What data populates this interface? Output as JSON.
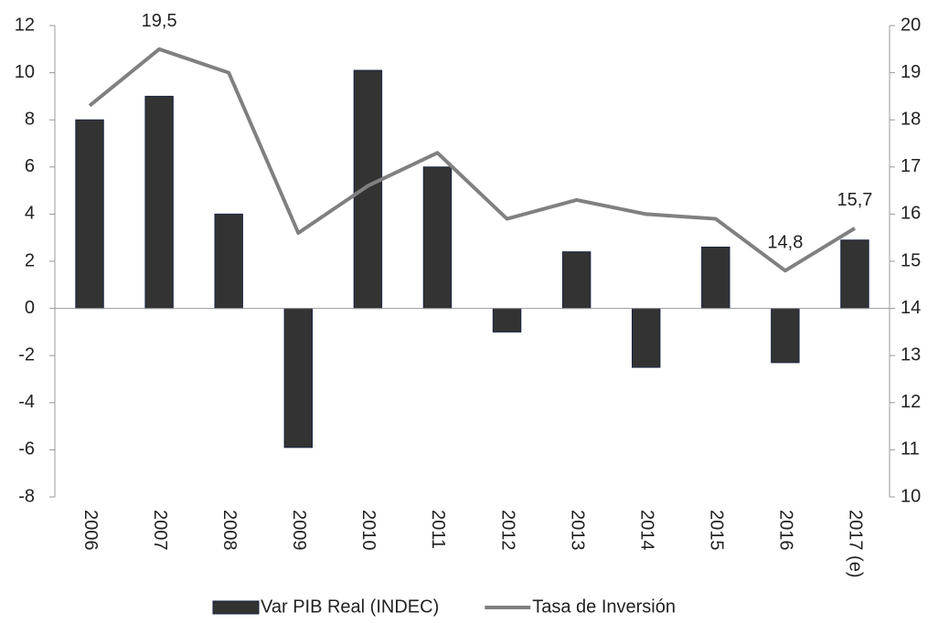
{
  "chart_data": {
    "type": "bar_line",
    "categories": [
      "2006",
      "2007",
      "2008",
      "2009",
      "2010",
      "2011",
      "2012",
      "2013",
      "2014",
      "2015",
      "2016",
      "2017 (e)"
    ],
    "series": [
      {
        "name": "Var PIB Real (INDEC)",
        "type": "bar",
        "color": "#333333",
        "values": [
          8.0,
          9.0,
          4.0,
          -5.9,
          10.1,
          6.0,
          -1.0,
          2.4,
          -2.5,
          2.6,
          -2.3,
          2.9
        ]
      },
      {
        "name": "Tasa de Inversión",
        "type": "line",
        "axis": "y2",
        "color": "#808080",
        "values": [
          18.3,
          19.5,
          19.0,
          15.6,
          16.6,
          17.3,
          15.9,
          16.3,
          16.0,
          15.9,
          14.8,
          15.7
        ],
        "value_labels": [
          null,
          "19,5",
          null,
          null,
          null,
          null,
          null,
          null,
          null,
          null,
          "14,8",
          "15,7"
        ]
      }
    ],
    "ylim": [
      -8,
      12
    ],
    "yticks": [
      -8,
      -6,
      -4,
      -2,
      0,
      2,
      4,
      6,
      8,
      10,
      12
    ],
    "y2lim": [
      10,
      20
    ],
    "y2ticks": [
      10,
      11,
      12,
      13,
      14,
      15,
      16,
      17,
      18,
      19,
      20
    ],
    "legend": "bottom"
  }
}
